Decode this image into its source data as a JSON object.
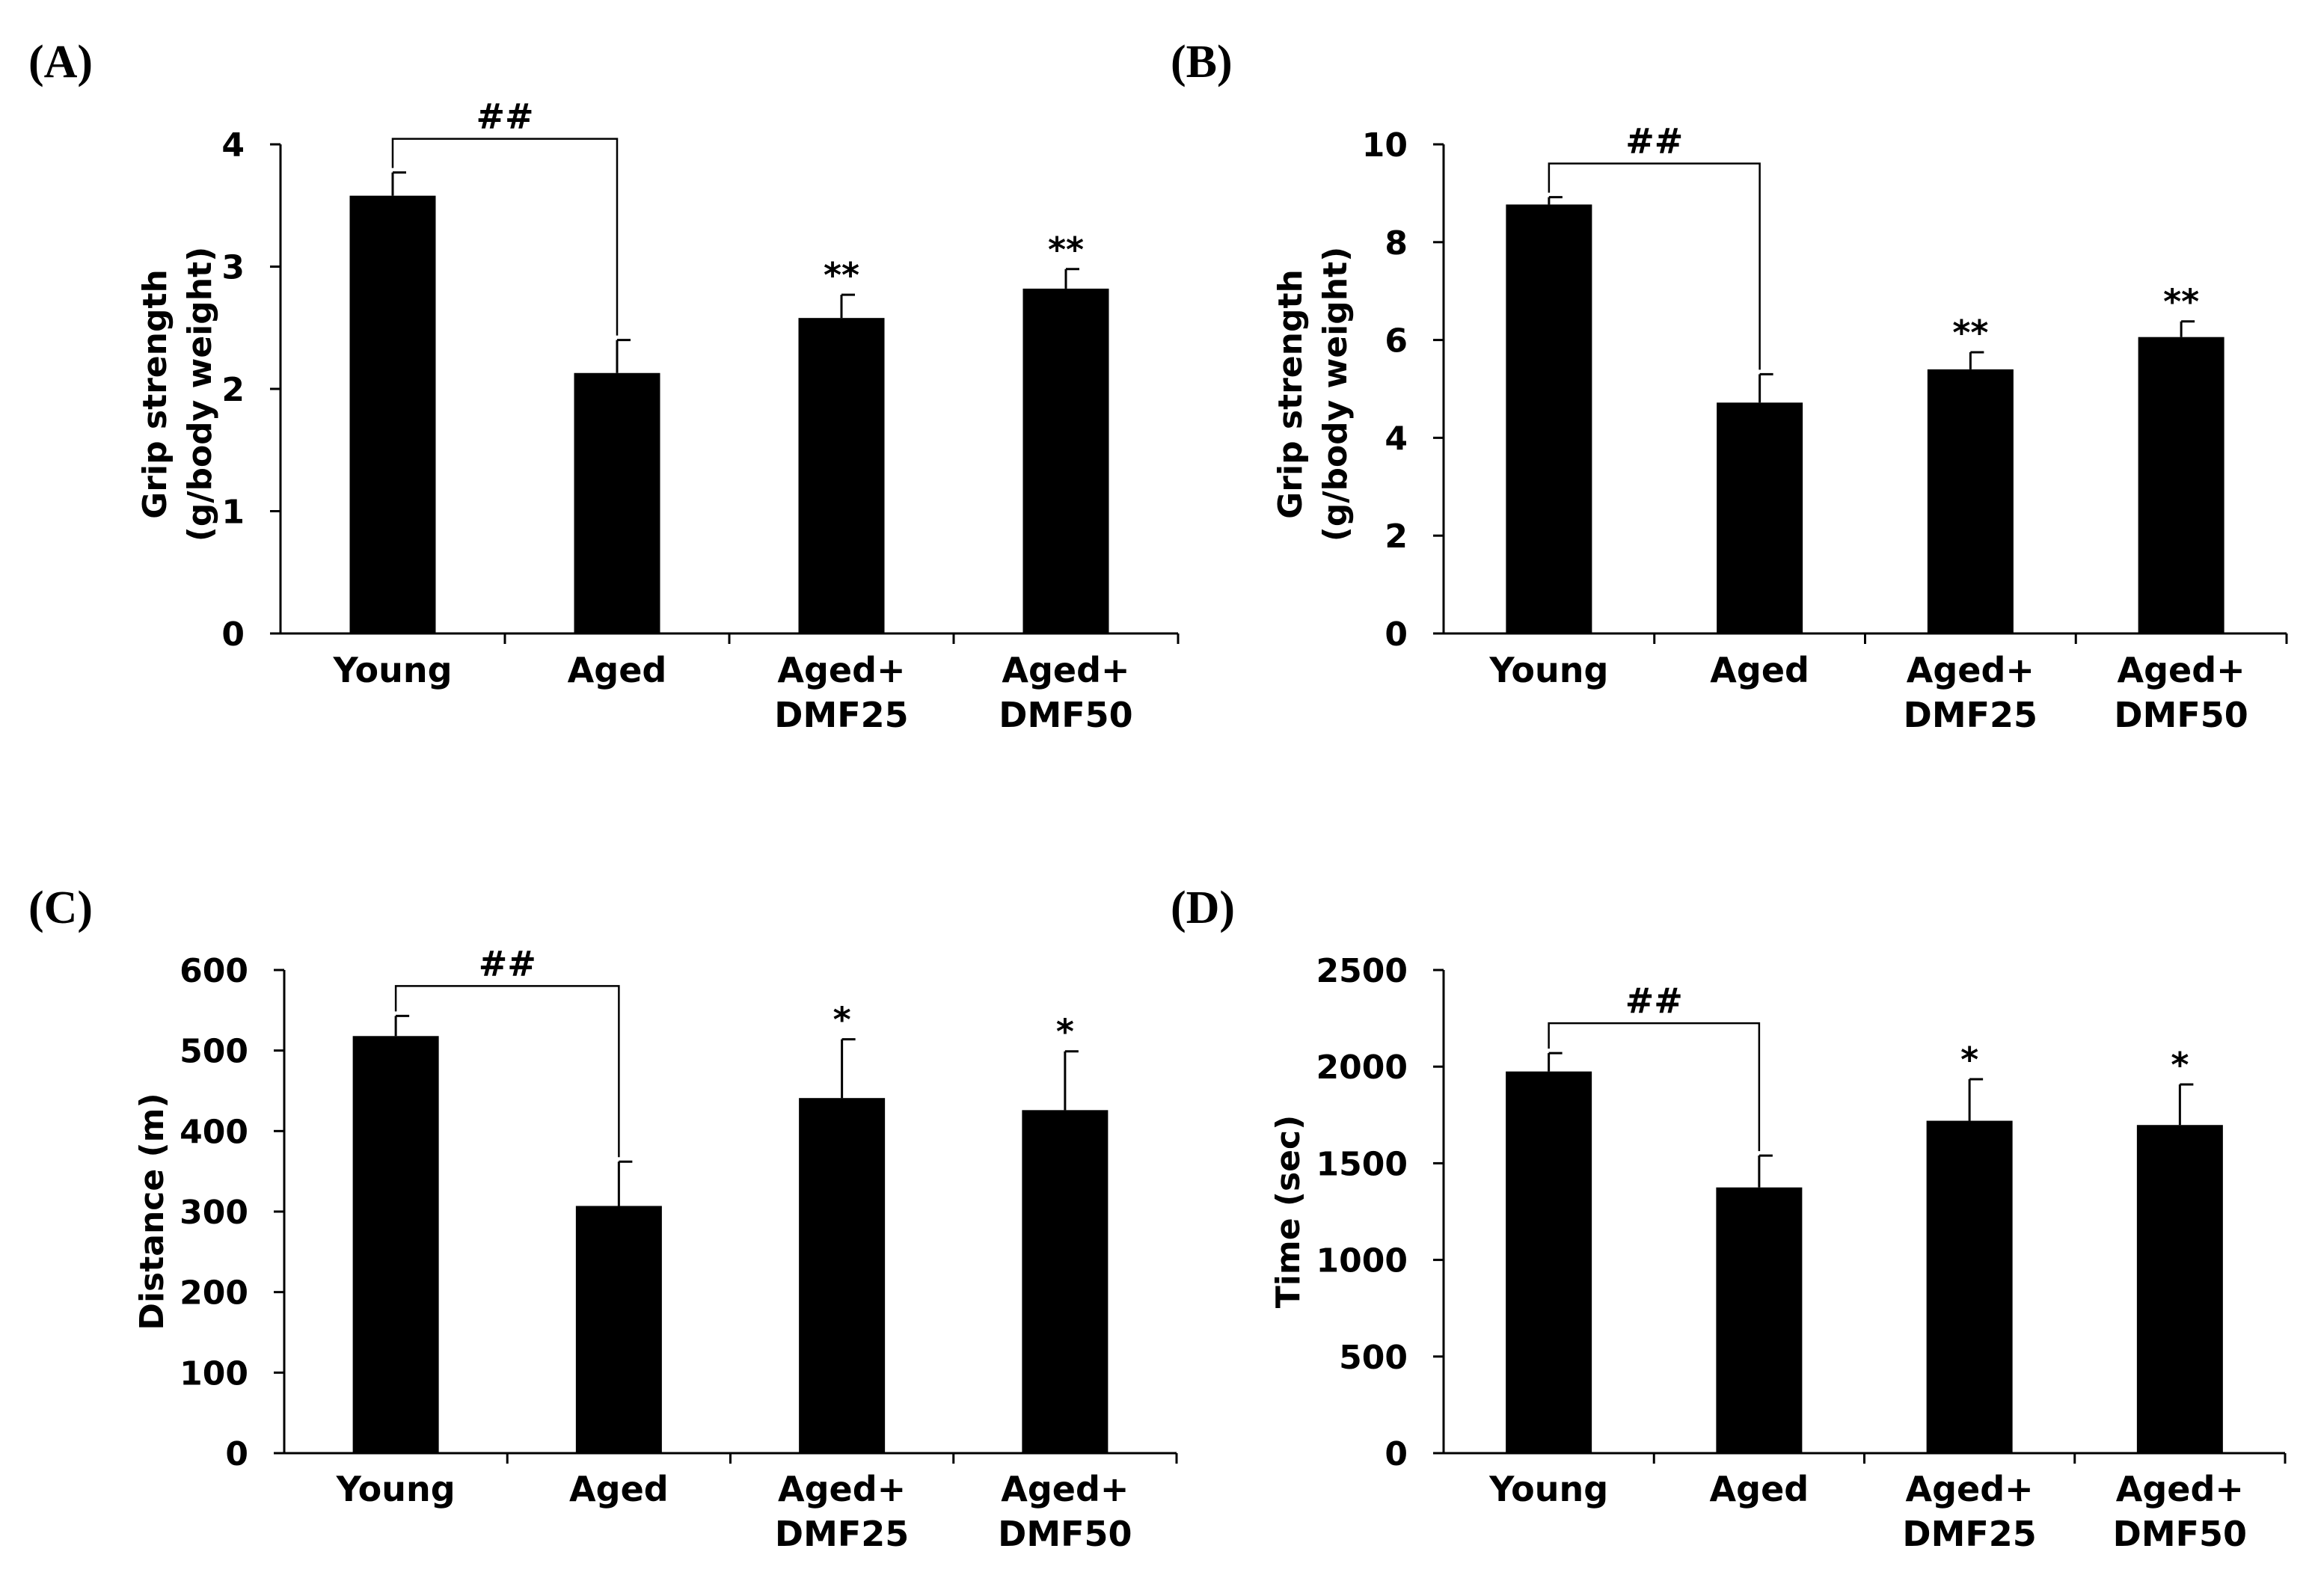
{
  "chart_data": [
    {
      "panel": "(A)",
      "type": "bar",
      "categories": [
        [
          "Young"
        ],
        [
          "Aged"
        ],
        [
          "Aged+",
          "DMF25"
        ],
        [
          "Aged+",
          "DMF50"
        ]
      ],
      "values": [
        3.58,
        2.13,
        2.58,
        2.82
      ],
      "errors": [
        0.19,
        0.27,
        0.19,
        0.16
      ],
      "significance": [
        "",
        "",
        "**",
        "**"
      ],
      "bracket_label": "##",
      "ylabel": [
        "Grip strength",
        "(g/body weight)"
      ],
      "ylim": [
        0,
        4
      ],
      "yticks": [
        0,
        1,
        2,
        3,
        4
      ]
    },
    {
      "panel": "(B)",
      "type": "bar",
      "categories": [
        [
          "Young"
        ],
        [
          "Aged"
        ],
        [
          "Aged+",
          "DMF25"
        ],
        [
          "Aged+",
          "DMF50"
        ]
      ],
      "values": [
        8.77,
        4.72,
        5.4,
        6.06
      ],
      "errors": [
        0.15,
        0.58,
        0.35,
        0.32
      ],
      "significance": [
        "",
        "",
        "**",
        "**"
      ],
      "bracket_label": "##",
      "ylabel": [
        "Grip strength",
        "(g/body weight)"
      ],
      "ylim": [
        0,
        10
      ],
      "yticks": [
        0,
        2,
        4,
        6,
        8,
        10
      ]
    },
    {
      "panel": "(C)",
      "type": "bar",
      "categories": [
        [
          "Young"
        ],
        [
          "Aged"
        ],
        [
          "Aged+",
          "DMF25"
        ],
        [
          "Aged+",
          "DMF50"
        ]
      ],
      "values": [
        518,
        307,
        441,
        426
      ],
      "errors": [
        25,
        55,
        73,
        73
      ],
      "significance": [
        "",
        "",
        "*",
        "*"
      ],
      "bracket_label": "##",
      "ylabel": [
        "Distance (m)"
      ],
      "ylim": [
        0,
        600
      ],
      "yticks": [
        0,
        100,
        200,
        300,
        400,
        500,
        600
      ]
    },
    {
      "panel": "(D)",
      "type": "bar",
      "categories": [
        [
          "Young"
        ],
        [
          "Aged"
        ],
        [
          "Aged+",
          "DMF25"
        ],
        [
          "Aged+",
          "DMF50"
        ]
      ],
      "values": [
        1975,
        1375,
        1720,
        1698
      ],
      "errors": [
        95,
        165,
        215,
        210
      ],
      "significance": [
        "",
        "",
        "*",
        "*"
      ],
      "bracket_label": "##",
      "ylabel": [
        "Time (sec)"
      ],
      "ylim": [
        0,
        2500
      ],
      "yticks": [
        0,
        500,
        1000,
        1500,
        2000,
        2500
      ]
    }
  ]
}
